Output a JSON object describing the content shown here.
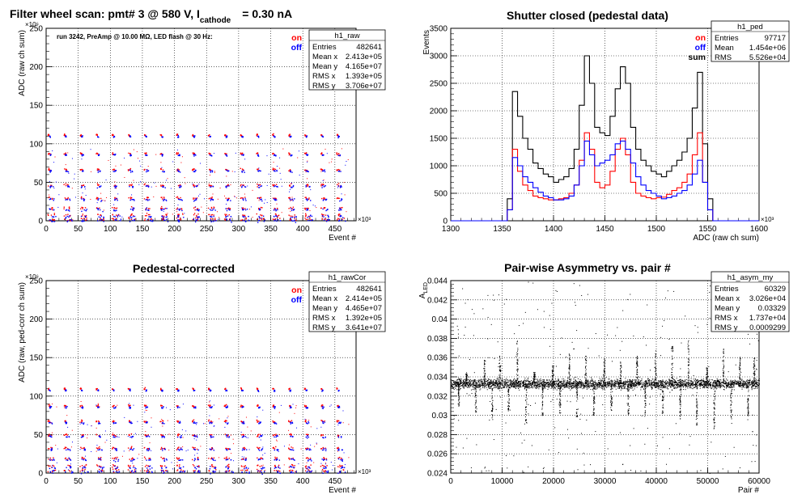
{
  "chart_data": [
    {
      "type": "scatter",
      "title": "Filter wheel scan: pmt#   3 @   580 V, I",
      "title_sub": "cathode",
      "title_tail": "= 0.30 nA",
      "annotation": "run 3242, PreAmp @ 10.00 MΩ, LED flash @   30 Hz:",
      "xlabel": "Event #",
      "ylabel": "ADC (raw ch sum)",
      "x_exponent": "×10³",
      "y_exponent": "×10⁶",
      "xlim": [
        0,
        483
      ],
      "ylim": [
        0,
        250
      ],
      "xticks": [
        0,
        50,
        100,
        150,
        200,
        250,
        300,
        350,
        400,
        450
      ],
      "yticks": [
        0,
        50,
        100,
        150,
        200,
        250
      ],
      "grid": true,
      "legend": [
        {
          "label": "on",
          "color": "#ff0000"
        },
        {
          "label": "off",
          "color": "#0000ff"
        }
      ],
      "stats": {
        "name": "h1_raw",
        "rows": [
          [
            "Entries",
            "482641"
          ],
          [
            "Mean x",
            "2.413e+05"
          ],
          [
            "Mean y",
            "4.165e+07"
          ],
          [
            "RMS x",
            "1.393e+05"
          ],
          [
            "RMS y",
            "3.706e+07"
          ]
        ]
      },
      "band_levels": [
        112,
        88,
        67,
        47,
        30,
        17,
        8,
        3
      ],
      "n_groups": 19,
      "group_period": 25
    },
    {
      "type": "line",
      "title": "Shutter closed (pedestal data)",
      "xlabel": "ADC (raw ch sum)",
      "ylabel": "Events",
      "x_exponent": "×10³",
      "xlim": [
        1300,
        1600
      ],
      "ylim": [
        0,
        3500
      ],
      "xticks": [
        1300,
        1350,
        1400,
        1450,
        1500,
        1550,
        1600
      ],
      "yticks": [
        0,
        500,
        1000,
        1500,
        2000,
        2500,
        3000,
        3500
      ],
      "grid": true,
      "legend": [
        {
          "label": "on",
          "color": "#ff0000"
        },
        {
          "label": "off",
          "color": "#0000ff"
        },
        {
          "label": "sum",
          "color": "#000000"
        }
      ],
      "stats": {
        "name": "h1_ped",
        "rows": [
          [
            "Entries",
            "97717"
          ],
          [
            "Mean",
            "1.454e+06"
          ],
          [
            "RMS",
            "5.526e+04"
          ]
        ]
      },
      "x": [
        1355,
        1360,
        1365,
        1370,
        1375,
        1380,
        1385,
        1390,
        1395,
        1400,
        1405,
        1410,
        1415,
        1420,
        1425,
        1430,
        1435,
        1440,
        1445,
        1450,
        1455,
        1460,
        1465,
        1470,
        1475,
        1480,
        1485,
        1490,
        1495,
        1500,
        1505,
        1510,
        1515,
        1520,
        1525,
        1530,
        1535,
        1540,
        1545,
        1550,
        1555
      ],
      "series": [
        {
          "name": "sum",
          "color": "#000000",
          "values": [
            400,
            2350,
            1900,
            1500,
            1300,
            1050,
            950,
            850,
            800,
            700,
            750,
            800,
            950,
            1300,
            2100,
            3000,
            2500,
            1700,
            1600,
            1550,
            1900,
            2400,
            2800,
            2500,
            1700,
            1300,
            1100,
            1000,
            900,
            850,
            800,
            900,
            1000,
            1100,
            1250,
            1500,
            2050,
            2700,
            1400,
            400,
            0
          ]
        },
        {
          "name": "on",
          "color": "#ff0000",
          "values": [
            200,
            1300,
            900,
            650,
            550,
            450,
            420,
            400,
            380,
            380,
            400,
            420,
            500,
            650,
            1100,
            1600,
            1300,
            700,
            600,
            650,
            900,
            1300,
            1500,
            1200,
            700,
            500,
            450,
            420,
            400,
            420,
            430,
            480,
            550,
            600,
            700,
            850,
            1200,
            1600,
            700,
            200,
            0
          ]
        },
        {
          "name": "off",
          "color": "#0000ff",
          "values": [
            200,
            1150,
            1000,
            800,
            700,
            600,
            520,
            450,
            420,
            380,
            380,
            400,
            450,
            650,
            1000,
            1450,
            1200,
            1000,
            1050,
            1100,
            1200,
            1400,
            1450,
            1300,
            1050,
            800,
            650,
            550,
            500,
            450,
            400,
            420,
            450,
            500,
            550,
            650,
            850,
            1100,
            700,
            200,
            0
          ]
        }
      ]
    },
    {
      "type": "scatter",
      "title": "Pedestal-corrected",
      "xlabel": "Event #",
      "ylabel": "ADC (raw, ped-corr ch sum)",
      "x_exponent": "×10³",
      "y_exponent": "×10⁶",
      "xlim": [
        0,
        483
      ],
      "ylim": [
        0,
        250
      ],
      "xticks": [
        0,
        50,
        100,
        150,
        200,
        250,
        300,
        350,
        400,
        450
      ],
      "yticks": [
        0,
        50,
        100,
        150,
        200,
        250
      ],
      "grid": true,
      "legend": [
        {
          "label": "on",
          "color": "#ff0000"
        },
        {
          "label": "off",
          "color": "#0000ff"
        }
      ],
      "stats": {
        "name": "h1_rawCor",
        "rows": [
          [
            "Entries",
            "482641"
          ],
          [
            "Mean x",
            "2.414e+05"
          ],
          [
            "Mean y",
            "4.465e+07"
          ],
          [
            "RMS x",
            "1.392e+05"
          ],
          [
            "RMS y",
            "3.641e+07"
          ]
        ]
      },
      "band_levels": [
        110,
        88,
        68,
        50,
        33,
        20,
        10,
        4
      ],
      "n_groups": 19,
      "group_period": 25
    },
    {
      "type": "scatter",
      "title": "Pair-wise Asymmetry vs. pair #",
      "xlabel": "Pair #",
      "ylabel": "A",
      "ylabel_sub": "LED",
      "xlim": [
        0,
        60000
      ],
      "ylim": [
        0.024,
        0.044
      ],
      "xticks": [
        0,
        10000,
        20000,
        30000,
        40000,
        50000,
        60000
      ],
      "yticks": [
        0.024,
        0.026,
        0.028,
        0.03,
        0.032,
        0.034,
        0.036,
        0.038,
        0.04,
        0.042,
        0.044
      ],
      "ytick_labels": [
        "0.024",
        "0.026",
        "0.028",
        "0.03",
        "0.032",
        "0.034",
        "0.036",
        "0.038",
        "0.04",
        "0.042",
        "0.044"
      ],
      "grid": true,
      "stats": {
        "name": "h1_asym_my",
        "rows": [
          [
            "Entries",
            "60329"
          ],
          [
            "Mean x",
            "3.026e+04"
          ],
          [
            "Mean y",
            "0.03329"
          ],
          [
            "RMS x",
            "1.737e+04"
          ],
          [
            "RMS y",
            "0.0009299"
          ]
        ]
      },
      "central_value": 0.0333,
      "spread": 0.0009,
      "spikes_up": [
        3000,
        6500,
        9500,
        12900,
        16200,
        19800,
        23000,
        26200,
        29800,
        33000,
        36200,
        39800,
        43000,
        46200,
        49800,
        53000,
        56200,
        59000
      ],
      "spike_up_heights": [
        0.0345,
        0.0358,
        0.0362,
        0.0378,
        0.0345,
        0.0352,
        0.0365,
        0.0362,
        0.036,
        0.0356,
        0.0362,
        0.0368,
        0.0376,
        0.0378,
        0.035,
        0.0372,
        0.0362,
        0.036
      ],
      "spikes_down": [
        1500,
        4800,
        8000,
        11200,
        14600,
        17800,
        21200,
        24500,
        27800,
        31200,
        34500,
        37800,
        41200,
        44600,
        47800,
        51200,
        54500,
        57800
      ],
      "spike_down_depths": [
        0.031,
        0.0302,
        0.0296,
        0.0305,
        0.0292,
        0.03,
        0.0302,
        0.0298,
        0.03,
        0.0305,
        0.03,
        0.0298,
        0.0302,
        0.0296,
        0.029,
        0.0286,
        0.0296,
        0.03
      ]
    }
  ]
}
